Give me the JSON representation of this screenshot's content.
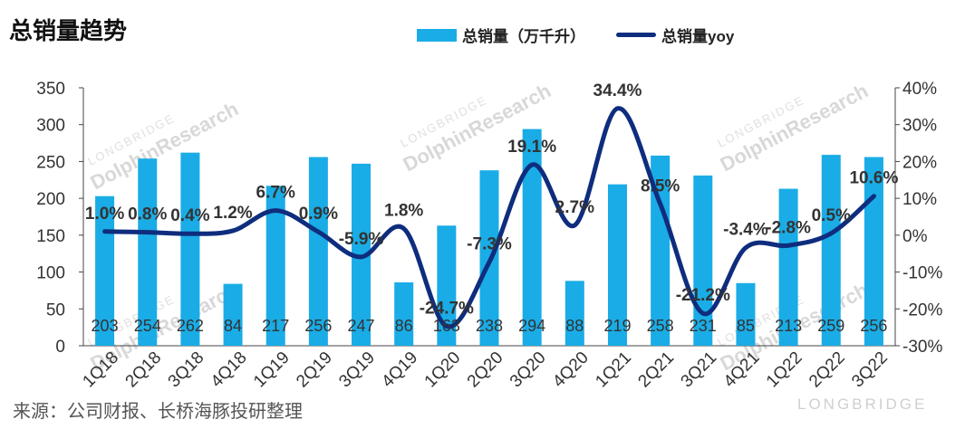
{
  "title": "总销量趋势",
  "source": "来源：公司财报、长桥海豚投研整理",
  "watermark": {
    "brand": "DolphinResearch",
    "sub": "LONGBRIDGE",
    "corner": "LONGBRIDGE"
  },
  "colors": {
    "bar": "#1AACE6",
    "line": "#0F2D7E",
    "axis": "#444444",
    "grid": "#dddddd"
  },
  "chart_data": {
    "type": "bar+line",
    "categories": [
      "1Q18",
      "2Q18",
      "3Q18",
      "4Q18",
      "1Q19",
      "2Q19",
      "3Q19",
      "4Q19",
      "1Q20",
      "2Q20",
      "3Q20",
      "4Q20",
      "1Q21",
      "2Q21",
      "3Q21",
      "4Q21",
      "1Q22",
      "2Q22",
      "3Q22"
    ],
    "series": [
      {
        "name": "总销量（万千升）",
        "type": "bar",
        "axis": "left",
        "values": [
          203,
          254,
          262,
          84,
          217,
          256,
          247,
          86,
          163,
          238,
          294,
          88,
          219,
          258,
          231,
          85,
          213,
          259,
          256
        ],
        "labels": [
          "203",
          "254",
          "262",
          "84",
          "217",
          "256",
          "247",
          "86",
          "163",
          "238",
          "294",
          "88",
          "219",
          "258",
          "231",
          "85",
          "213",
          "259",
          "256"
        ]
      },
      {
        "name": "总销量yoy",
        "type": "line",
        "axis": "right",
        "values": [
          1.0,
          0.8,
          0.4,
          1.2,
          6.7,
          0.9,
          -5.9,
          1.8,
          -24.7,
          -7.3,
          19.1,
          2.7,
          34.4,
          8.5,
          -21.2,
          -3.4,
          -2.8,
          0.5,
          10.6
        ],
        "labels": [
          "1.0%",
          "0.8%",
          "0.4%",
          "1.2%",
          "6.7%",
          "0.9%",
          "-5.9%",
          "1.8%",
          "-24.7%",
          "-7.3%",
          "19.1%",
          "2.7%",
          "34.4%",
          "8.5%",
          "-21.2%",
          "-3.4%",
          "-2.8%",
          "0.5%",
          "10.6%"
        ]
      }
    ],
    "y_left": {
      "min": 0,
      "max": 350,
      "ticks": [
        "0",
        "50",
        "100",
        "150",
        "200",
        "250",
        "300",
        "350"
      ]
    },
    "y_right": {
      "min": -30,
      "max": 40,
      "ticks": [
        "-30%",
        "-20%",
        "-10%",
        "0%",
        "10%",
        "20%",
        "30%",
        "40%"
      ]
    },
    "legend_position": "top",
    "grid": false
  }
}
